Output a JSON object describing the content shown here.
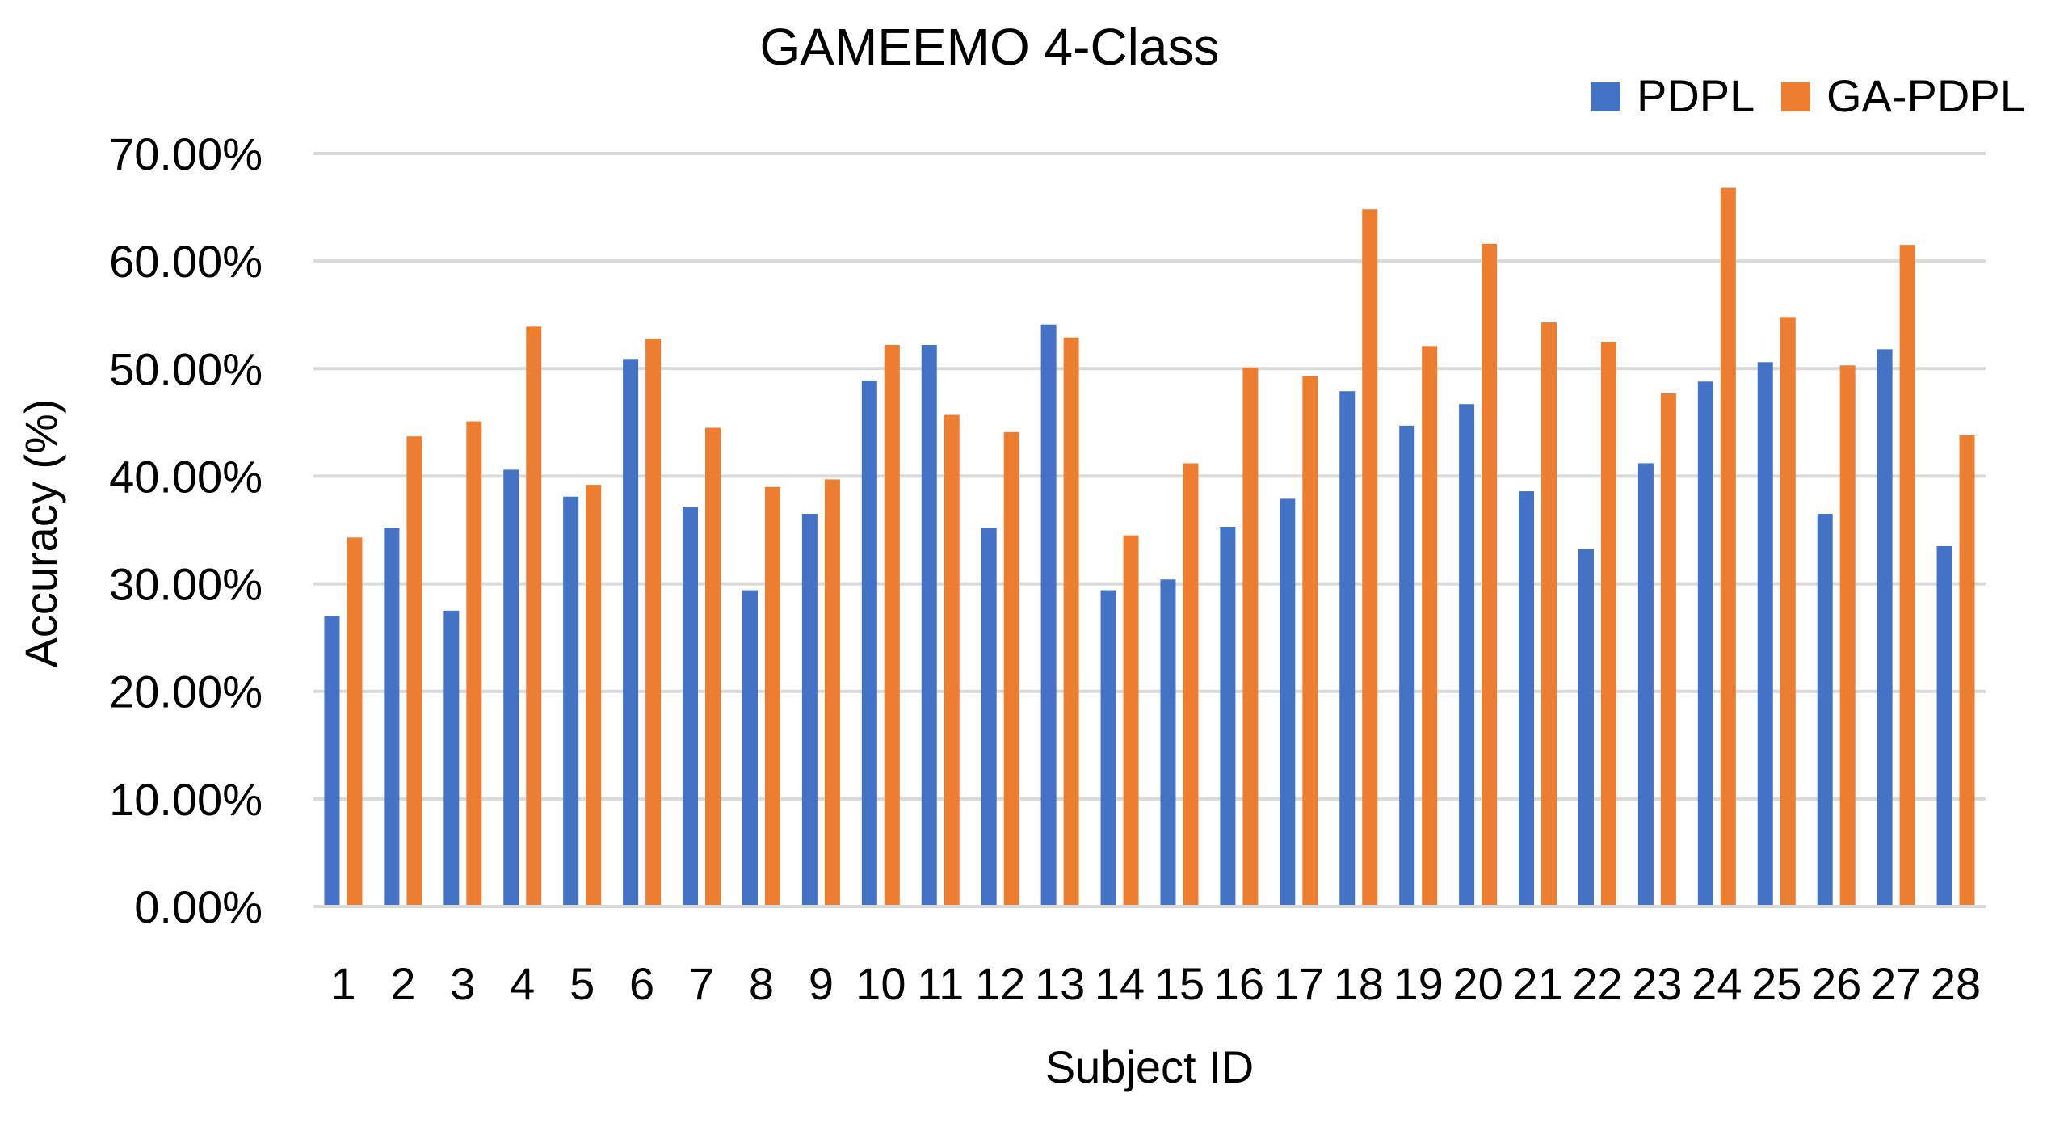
{
  "chart_data": {
    "type": "bar",
    "title": "GAMEEMO 4-Class",
    "xlabel": "Subject ID",
    "ylabel": "Accuracy (%)",
    "ylim": [
      0,
      0.7
    ],
    "yticks": [
      0,
      0.1,
      0.2,
      0.3,
      0.4,
      0.5,
      0.6,
      0.7
    ],
    "ytick_labels": [
      "0.00%",
      "10.00%",
      "20.00%",
      "30.00%",
      "40.00%",
      "50.00%",
      "60.00%",
      "70.00%"
    ],
    "grid": true,
    "legend_position": "top-right",
    "categories": [
      "1",
      "2",
      "3",
      "4",
      "5",
      "6",
      "7",
      "8",
      "9",
      "10",
      "11",
      "12",
      "13",
      "14",
      "15",
      "16",
      "17",
      "18",
      "19",
      "20",
      "21",
      "22",
      "23",
      "24",
      "25",
      "26",
      "27",
      "28"
    ],
    "series": [
      {
        "name": "PDPL",
        "color": "#4472C4",
        "values": [
          0.27,
          0.352,
          0.275,
          0.406,
          0.381,
          0.509,
          0.371,
          0.294,
          0.365,
          0.489,
          0.522,
          0.352,
          0.541,
          0.294,
          0.304,
          0.353,
          0.379,
          0.479,
          0.447,
          0.467,
          0.386,
          0.332,
          0.412,
          0.488,
          0.506,
          0.365,
          0.518,
          0.335
        ]
      },
      {
        "name": "GA-PDPL",
        "color": "#ED7D31",
        "values": [
          0.343,
          0.437,
          0.451,
          0.539,
          0.392,
          0.528,
          0.445,
          0.39,
          0.397,
          0.522,
          0.457,
          0.441,
          0.529,
          0.345,
          0.412,
          0.501,
          0.493,
          0.648,
          0.521,
          0.616,
          0.543,
          0.525,
          0.477,
          0.668,
          0.548,
          0.503,
          0.615,
          0.438
        ]
      }
    ]
  }
}
